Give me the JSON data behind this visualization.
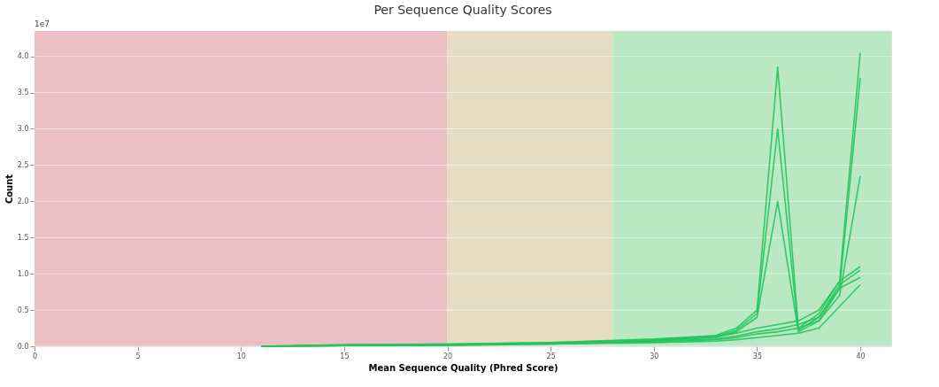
{
  "chart_data": {
    "type": "line",
    "title": "Per Sequence Quality Scores",
    "xlabel": "Mean Sequence Quality (Phred Score)",
    "ylabel": "Count",
    "x": [
      11,
      15,
      20,
      25,
      30,
      33,
      34,
      35,
      36,
      37,
      38,
      39,
      40
    ],
    "series": [
      {
        "color": "#22c55e",
        "values": [
          0,
          0.02,
          0.03,
          0.05,
          0.1,
          0.15,
          0.25,
          0.5,
          3.85,
          0.25,
          0.45,
          0.9,
          1.1
        ]
      },
      {
        "color": "#22c55e",
        "values": [
          0,
          0.01,
          0.02,
          0.04,
          0.08,
          0.12,
          0.2,
          0.4,
          2.0,
          0.2,
          0.35,
          0.8,
          0.95
        ]
      },
      {
        "color": "#22c55e",
        "values": [
          0,
          0.02,
          0.03,
          0.05,
          0.09,
          0.14,
          0.22,
          0.45,
          3.0,
          0.22,
          0.4,
          0.85,
          1.05
        ]
      },
      {
        "color": "#22c55e",
        "values": [
          0,
          0.01,
          0.02,
          0.04,
          0.09,
          0.13,
          0.18,
          0.25,
          0.3,
          0.35,
          0.5,
          0.9,
          4.05
        ]
      },
      {
        "color": "#22c55e",
        "values": [
          0,
          0.01,
          0.02,
          0.04,
          0.07,
          0.1,
          0.14,
          0.2,
          0.24,
          0.3,
          0.4,
          0.8,
          3.7
        ]
      },
      {
        "color": "#22c55e",
        "values": [
          0,
          0.01,
          0.02,
          0.03,
          0.06,
          0.09,
          0.12,
          0.17,
          0.2,
          0.25,
          0.35,
          0.7,
          2.35
        ]
      },
      {
        "color": "#22c55e",
        "values": [
          0,
          0.01,
          0.01,
          0.03,
          0.05,
          0.07,
          0.09,
          0.12,
          0.15,
          0.18,
          0.25,
          0.55,
          0.85
        ]
      }
    ],
    "xlim": [
      0,
      41.5
    ],
    "xticks": [
      0,
      5,
      10,
      15,
      20,
      25,
      30,
      35,
      40
    ],
    "ylim": [
      0,
      4.35
    ],
    "yticks": [
      {
        "value": 0,
        "label": "0.0"
      },
      0.5,
      {
        "value": 1,
        "label": "1.0"
      },
      1.5,
      {
        "value": 2,
        "label": "2.0"
      },
      2.5,
      {
        "value": 3,
        "label": "3.0"
      },
      3.5,
      {
        "value": 4,
        "label": "4.0"
      }
    ],
    "bands": [
      {
        "axis": "x",
        "from": 0,
        "to": 20,
        "color": "#ebbfc3"
      },
      {
        "axis": "x",
        "from": 20,
        "to": 28,
        "color": "#e6dcc2"
      },
      {
        "axis": "x",
        "from": 28,
        "to": 41.5,
        "color": "#b9e8c2"
      }
    ],
    "annotations": [
      "1e7"
    ],
    "grid": "y",
    "marker": "none",
    "line_style": "solid"
  }
}
